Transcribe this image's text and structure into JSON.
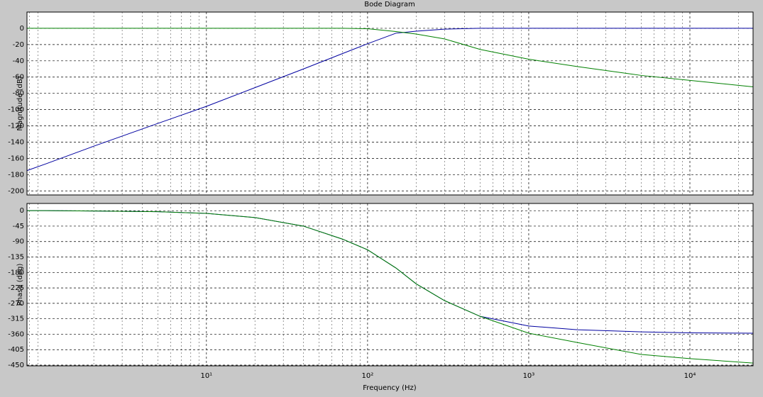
{
  "chart_data": [
    {
      "type": "line",
      "title": "Bode Diagram",
      "ylabel": "Magnitude (dB)",
      "xscale": "log",
      "grid": true,
      "xlim": [
        0.77,
        24660
      ],
      "ylim": [
        -205,
        20
      ],
      "yticks": [
        0,
        -20,
        -40,
        -60,
        -80,
        -100,
        -120,
        -140,
        -160,
        -180,
        -200
      ],
      "x": [
        0.77,
        1,
        2,
        5,
        10,
        20,
        40,
        70,
        100,
        150,
        200,
        300,
        500,
        1000,
        2000,
        5000,
        10000,
        24660
      ],
      "series": [
        {
          "color": "#0000a0",
          "values": [
            -175,
            -167,
            -145,
            -117,
            -96,
            -73,
            -50,
            -31,
            -19,
            -6,
            -3.5,
            -1,
            0,
            0,
            0,
            0,
            0,
            0
          ]
        },
        {
          "color": "#008000",
          "values": [
            0,
            0,
            0,
            0,
            0,
            0,
            0,
            0,
            -0.5,
            -4,
            -7,
            -13,
            -26,
            -38,
            -47,
            -58,
            -64,
            -72
          ]
        }
      ]
    },
    {
      "type": "line",
      "ylabel": "Phase (deg)",
      "xlabel": "Frequency  (Hz)",
      "xscale": "log",
      "grid": true,
      "xlim": [
        0.77,
        24660
      ],
      "ylim": [
        -452,
        21
      ],
      "yticks": [
        0,
        -45,
        -90,
        -135,
        -180,
        -225,
        -270,
        -315,
        -360,
        -405,
        -450
      ],
      "xticks": [
        {
          "value": 10,
          "label": "10¹"
        },
        {
          "value": 100,
          "label": "10²"
        },
        {
          "value": 1000,
          "label": "10³"
        },
        {
          "value": 10000,
          "label": "10⁴"
        }
      ],
      "xminor": [
        0.8,
        0.9,
        2,
        3,
        4,
        5,
        6,
        7,
        8,
        9,
        20,
        30,
        40,
        50,
        60,
        70,
        80,
        90,
        200,
        300,
        400,
        500,
        600,
        700,
        800,
        900,
        2000,
        3000,
        4000,
        5000,
        6000,
        7000,
        8000,
        9000,
        20000
      ],
      "x": [
        0.77,
        1,
        2,
        5,
        10,
        20,
        40,
        70,
        100,
        150,
        200,
        300,
        500,
        1000,
        2000,
        5000,
        10000,
        24660
      ],
      "series": [
        {
          "color": "#0000a0",
          "values": [
            0,
            0,
            -1,
            -3,
            -8,
            -20,
            -45,
            -83,
            -114,
            -167,
            -213,
            -262,
            -308,
            -336,
            -347,
            -353,
            -356,
            -357
          ]
        },
        {
          "color": "#008000",
          "values": [
            0,
            0,
            -1,
            -3,
            -8,
            -20,
            -45,
            -83,
            -114,
            -167,
            -213,
            -262,
            -308,
            -357,
            -384,
            -419,
            -431,
            -444
          ]
        }
      ]
    }
  ]
}
